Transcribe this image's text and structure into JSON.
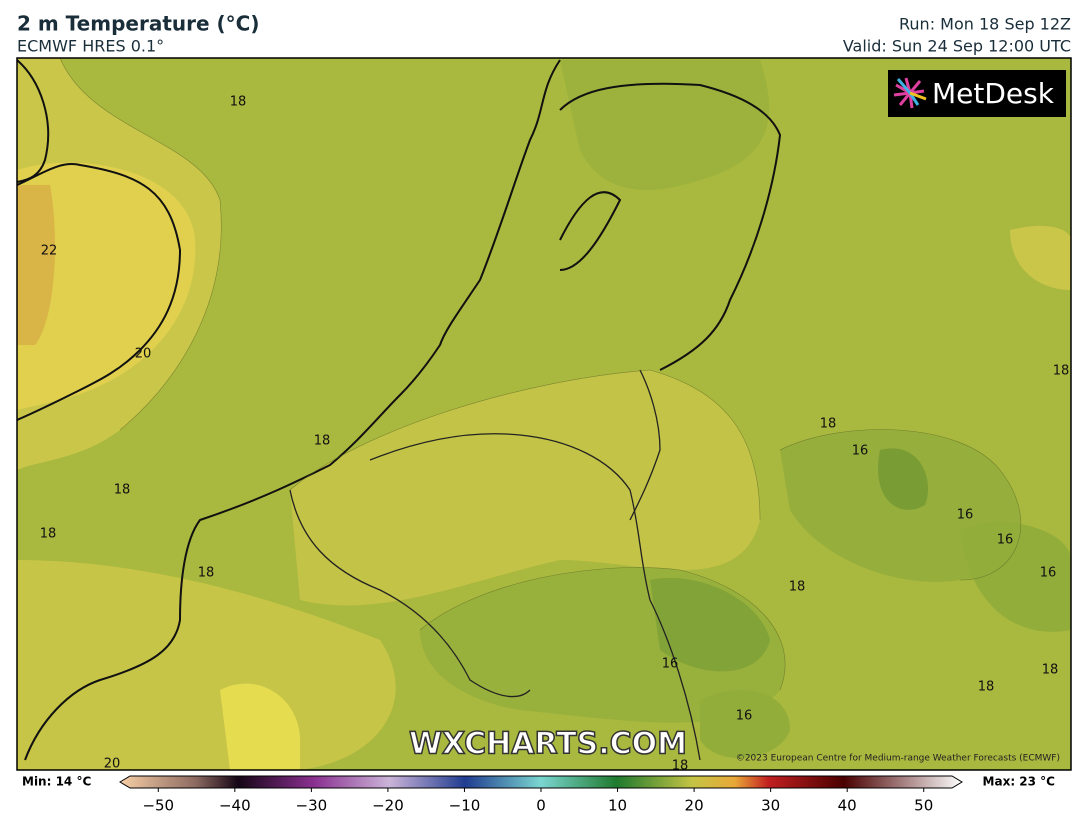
{
  "header": {
    "title": "2 m Temperature (°C)",
    "subtitle": "ECMWF HRES 0.1°",
    "run": "Run: Mon 18 Sep 12Z",
    "valid": "Valid: Sun 24 Sep 12:00 UTC"
  },
  "logo": "MetDesk",
  "watermark": "WXCHARTS.COM",
  "copyright": "©2023 European Centre for Medium-range Weather Forecasts (ECMWF)",
  "map": {
    "contour_labels": [
      "18",
      "22",
      "20",
      "18",
      "18",
      "18",
      "18",
      "18",
      "16",
      "18",
      "16",
      "16",
      "16",
      "18",
      "16",
      "16",
      "18",
      "18",
      "20",
      "18"
    ]
  },
  "legend": {
    "min_label": "Min: 14 °C",
    "max_label": "Max: 23 °C",
    "lim": [
      -55,
      55
    ],
    "ticks": [
      {
        "value": -50,
        "label": "−50"
      },
      {
        "value": -40,
        "label": "−40"
      },
      {
        "value": -30,
        "label": "−30"
      },
      {
        "value": -20,
        "label": "−20"
      },
      {
        "value": -10,
        "label": "−10"
      },
      0,
      10,
      20,
      30,
      40,
      50
    ]
  }
}
